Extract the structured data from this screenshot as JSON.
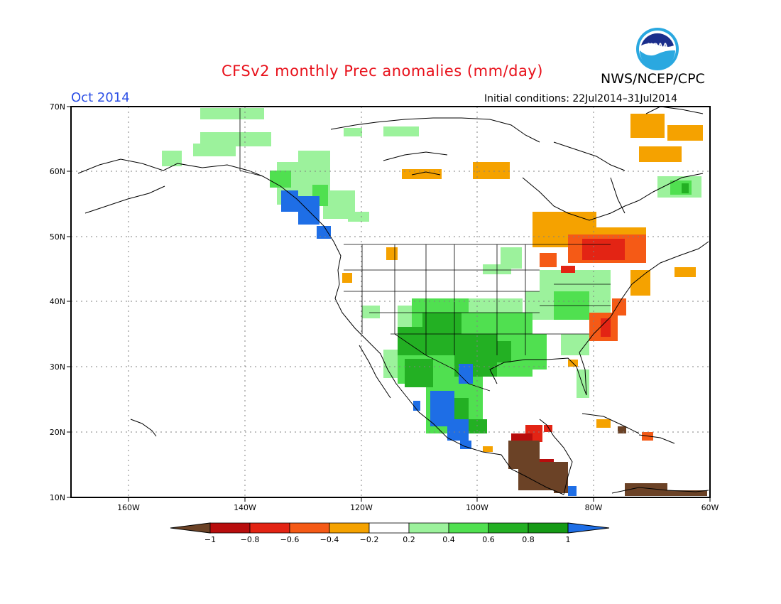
{
  "title": "CFSv2 monthly Prec anomalies (mm/day)",
  "agency": "NWS/NCEP/CPC",
  "logo_text": "NOAA",
  "month": "Oct 2014",
  "initial_conditions": "Initial conditions: 22Jul2014–31Jul2014",
  "lat_labels": [
    "70N",
    "60N",
    "50N",
    "40N",
    "30N",
    "20N",
    "10N"
  ],
  "lon_labels": [
    "160W",
    "140W",
    "120W",
    "100W",
    "80W",
    "60W"
  ],
  "colorbar": {
    "labels": [
      "−1",
      "−0.8",
      "−0.6",
      "−0.4",
      "−0.2",
      "0.2",
      "0.4",
      "0.6",
      "0.8",
      "1"
    ],
    "colors": [
      "#6b4226",
      "#b80d0d",
      "#e32414",
      "#f55a16",
      "#f5a200",
      "#ffffff",
      "#9cf29c",
      "#50e050",
      "#23b023",
      "#159a15",
      "#1e6ee6"
    ]
  }
}
